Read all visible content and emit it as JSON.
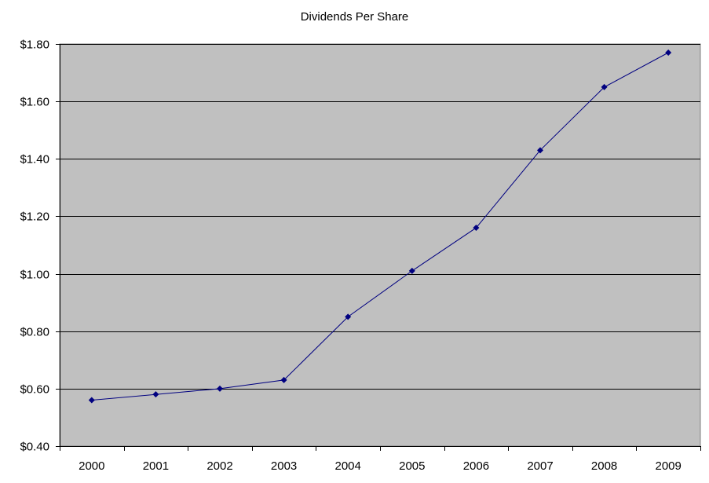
{
  "chart_data": {
    "type": "line",
    "title": "Dividends Per Share",
    "xlabel": "",
    "ylabel": "",
    "categories": [
      "2000",
      "2001",
      "2002",
      "2003",
      "2004",
      "2005",
      "2006",
      "2007",
      "2008",
      "2009"
    ],
    "series": [
      {
        "values": [
          0.56,
          0.58,
          0.6,
          0.63,
          0.85,
          1.01,
          1.16,
          1.43,
          1.65,
          1.77
        ],
        "color": "#000080",
        "marker": "diamond"
      }
    ],
    "ylim": [
      0.4,
      1.8
    ],
    "yticks": [
      0.4,
      0.6,
      0.8,
      1.0,
      1.2,
      1.4,
      1.6,
      1.8
    ],
    "ytick_labels": [
      "$0.40",
      "$0.60",
      "$0.80",
      "$1.00",
      "$1.20",
      "$1.40",
      "$1.60",
      "$1.80"
    ],
    "grid": "horizontal",
    "legend": "none",
    "plot_background": "#c0c0c0",
    "gridline_color": "#000000"
  }
}
